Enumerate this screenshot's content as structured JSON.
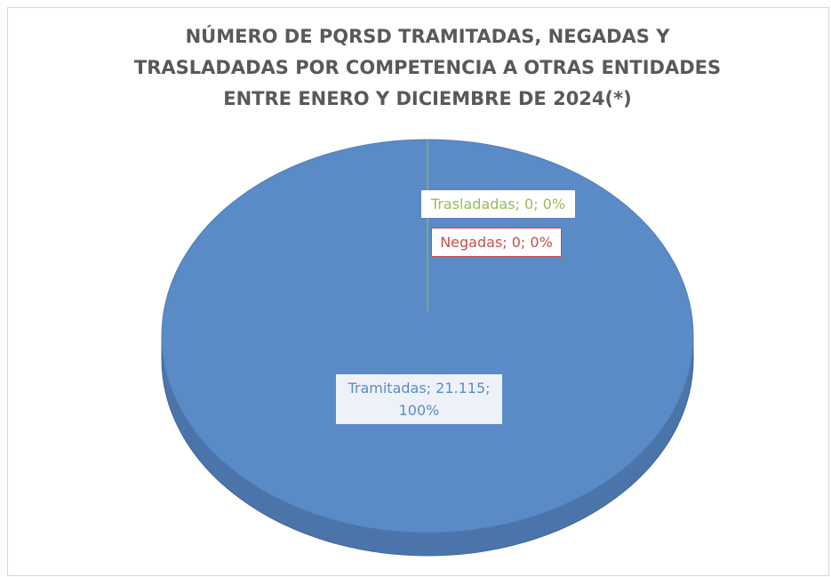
{
  "chart_data": {
    "type": "pie",
    "title": [
      "NÚMERO DE PQRSD TRAMITADAS, NEGADAS Y",
      "TRASLADADAS POR COMPETENCIA A OTRAS ENTIDADES",
      "ENTRE ENERO Y DICIEMBRE DE 2024(*)"
    ],
    "categories": [
      "Tramitadas",
      "Negadas",
      "Trasladadas"
    ],
    "values": [
      21115,
      0,
      0
    ],
    "value_labels": [
      "Tramitadas; 21.115; 100%",
      "Negadas; 0; 0%",
      "Trasladadas; 0; 0%"
    ],
    "colors": [
      "#5b8bc6",
      "#c0504d",
      "#9bbb59"
    ]
  }
}
